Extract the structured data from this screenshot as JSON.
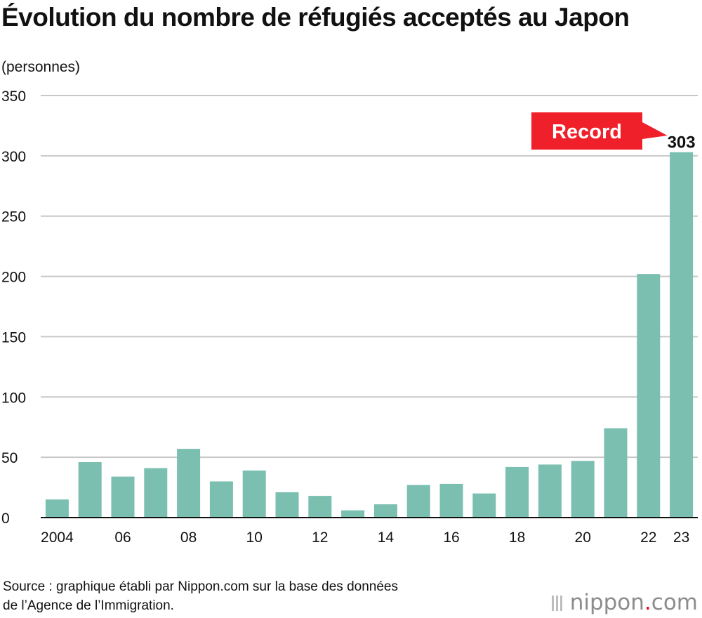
{
  "title": "Évolution du nombre de réfugiés acceptés au Japon",
  "source": {
    "line1": "Source : graphique établi par Nippon.com sur la base des données",
    "line2": "de l’Agence de l’Immigration."
  },
  "logo": {
    "name": "nippon",
    "dot": ".",
    "suffix": "com"
  },
  "colors": {
    "bar": "#7bbfb0",
    "callout": "#f0202a",
    "grid": "#c8c8c8",
    "axis": "#111111"
  },
  "chart_data": {
    "type": "bar",
    "title": "Évolution du nombre de réfugiés acceptés au Japon",
    "ylabel": "(personnes)",
    "xlabel": "",
    "ylim": [
      0,
      350
    ],
    "yticks": [
      0,
      50,
      100,
      150,
      200,
      250,
      300,
      350
    ],
    "grid": true,
    "categories": [
      "2004",
      "2005",
      "2006",
      "2007",
      "2008",
      "2009",
      "2010",
      "2011",
      "2012",
      "2013",
      "2014",
      "2015",
      "2016",
      "2017",
      "2018",
      "2019",
      "2020",
      "2021",
      "2022",
      "2023"
    ],
    "values": [
      15,
      46,
      34,
      41,
      57,
      30,
      39,
      21,
      18,
      6,
      11,
      27,
      28,
      20,
      42,
      44,
      47,
      74,
      202,
      303
    ],
    "xtick_labels": [
      {
        "index": 0,
        "label": "2004"
      },
      {
        "index": 2,
        "label": "06"
      },
      {
        "index": 4,
        "label": "08"
      },
      {
        "index": 6,
        "label": "10"
      },
      {
        "index": 8,
        "label": "12"
      },
      {
        "index": 10,
        "label": "14"
      },
      {
        "index": 12,
        "label": "16"
      },
      {
        "index": 14,
        "label": "18"
      },
      {
        "index": 16,
        "label": "20"
      },
      {
        "index": 18,
        "label": "22"
      },
      {
        "index": 19,
        "label": "23"
      }
    ],
    "annotation": {
      "index": 19,
      "value_label": "303",
      "callout": "Record"
    }
  }
}
